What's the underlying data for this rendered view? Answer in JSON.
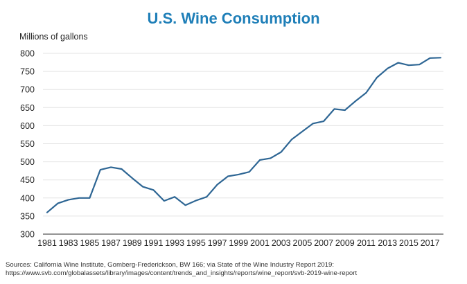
{
  "chart_data": {
    "type": "line",
    "title": "U.S. Wine Consumption",
    "ylabel": "Millions of gallons",
    "xlabel": "",
    "ylim": [
      300,
      800
    ],
    "yticks": [
      300,
      350,
      400,
      450,
      500,
      550,
      600,
      650,
      700,
      750,
      800
    ],
    "xlim": [
      1981,
      2018
    ],
    "xticks": [
      1981,
      1983,
      1985,
      1987,
      1989,
      1991,
      1993,
      1995,
      1997,
      1999,
      2001,
      2003,
      2005,
      2007,
      2009,
      2011,
      2013,
      2015,
      2017
    ],
    "grid": "horizontal",
    "line_color": "#2e6694",
    "x": [
      1981,
      1982,
      1983,
      1984,
      1985,
      1986,
      1987,
      1988,
      1989,
      1990,
      1991,
      1992,
      1993,
      1994,
      1995,
      1996,
      1997,
      1998,
      1999,
      2000,
      2001,
      2002,
      2003,
      2004,
      2005,
      2006,
      2007,
      2008,
      2009,
      2010,
      2011,
      2012,
      2013,
      2014,
      2015,
      2016,
      2017,
      2018
    ],
    "series": [
      {
        "values": [
          360,
          385,
          395,
          400,
          400,
          478,
          485,
          480,
          455,
          431,
          422,
          392,
          403,
          380,
          393,
          403,
          437,
          460,
          465,
          472,
          505,
          510,
          527,
          562,
          584,
          606,
          612,
          646,
          643,
          668,
          691,
          733,
          758,
          774,
          767,
          769,
          787,
          788
        ]
      }
    ]
  },
  "source": {
    "line1": "Sources: California Wine Institute, Gomberg-Frederickson, BW 166; via State of the Wine Industry Report 2019:",
    "line2": "https://www.svb.com/globalassets/library/images/content/trends_and_insights/reports/wine_report/svb-2019-wine-report"
  }
}
